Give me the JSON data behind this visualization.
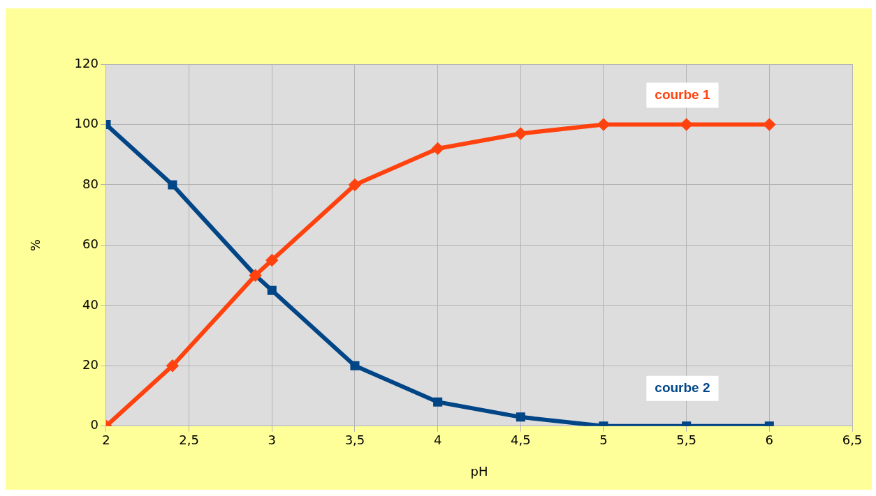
{
  "chart_data": {
    "type": "line",
    "xlabel": "pH",
    "ylabel": "%",
    "x": [
      2,
      2.4,
      2.9,
      3,
      3.5,
      4,
      4.5,
      5,
      5.5,
      6
    ],
    "series": [
      {
        "name": "courbe 1",
        "color": "#ff420e",
        "marker": "diamond",
        "values": [
          0,
          20,
          50,
          55,
          80,
          92,
          97,
          100,
          100,
          100
        ]
      },
      {
        "name": "courbe 2",
        "color": "#004586",
        "marker": "square",
        "values": [
          100,
          80,
          50,
          45,
          20,
          8,
          3,
          0,
          0,
          0
        ]
      }
    ],
    "xlim": [
      2,
      6.5
    ],
    "xticks": [
      2,
      {
        "value": 2.5,
        "label": "2,5"
      },
      3,
      {
        "value": 3.5,
        "label": "3,5"
      },
      4,
      {
        "value": 4.5,
        "label": "4,5"
      },
      5,
      {
        "value": 5.5,
        "label": "5,5"
      },
      6,
      {
        "value": 6.5,
        "label": "6,5"
      }
    ],
    "ylim": [
      0,
      120
    ],
    "yticks": [
      0,
      20,
      40,
      60,
      80,
      100,
      120
    ],
    "grid": true,
    "legend": false,
    "line_style": "solid"
  }
}
